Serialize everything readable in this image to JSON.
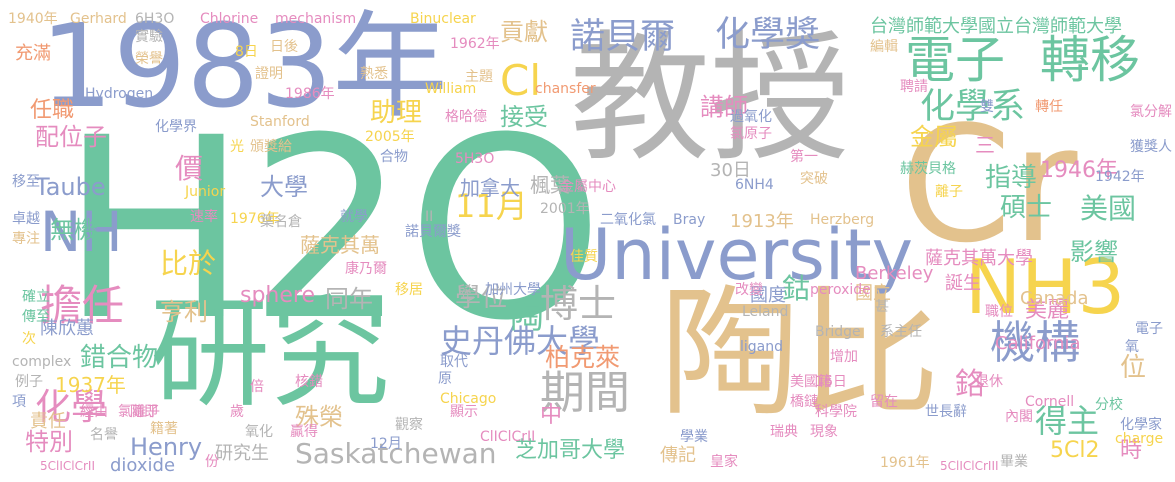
{
  "palette": {
    "green": "#6cc5a0",
    "blue": "#8b9ccc",
    "grey": "#b4b4b4",
    "tan": "#e3c28d",
    "yellow": "#f6d44e",
    "pink": "#e58cbf",
    "orange": "#f19a72",
    "lime": "#b3d35d"
  },
  "words": [
    {
      "text": "H2O",
      "color": "green"
    },
    {
      "text": "教授",
      "color": "grey"
    },
    {
      "text": "1983年",
      "color": "blue"
    },
    {
      "text": "研究",
      "color": "green"
    },
    {
      "text": "陶比",
      "color": "tan"
    },
    {
      "text": "Cr",
      "color": "tan"
    },
    {
      "text": "University",
      "color": "blue"
    },
    {
      "text": "NH3",
      "color": "yellow"
    },
    {
      "text": "電子",
      "color": "green"
    },
    {
      "text": "轉移",
      "color": "green"
    },
    {
      "text": "諾貝爾",
      "color": "blue"
    },
    {
      "text": "化學獎",
      "color": "blue"
    },
    {
      "text": "擔任",
      "color": "pink"
    },
    {
      "text": "機構",
      "color": "blue"
    },
    {
      "text": "期間",
      "color": "grey"
    },
    {
      "text": "Cl",
      "color": "yellow"
    },
    {
      "text": "化學系",
      "color": "green"
    },
    {
      "text": "NH",
      "color": "blue"
    },
    {
      "text": "史丹佛大學",
      "color": "blue"
    },
    {
      "text": "Saskatchewan",
      "color": "grey"
    },
    {
      "text": "博士",
      "color": "grey"
    },
    {
      "text": "1946年",
      "color": "pink"
    },
    {
      "text": "化學",
      "color": "pink"
    },
    {
      "text": "鉻",
      "color": "pink"
    },
    {
      "text": "錯合物",
      "color": "green"
    },
    {
      "text": "Taube",
      "color": "blue"
    },
    {
      "text": "無機",
      "color": "green"
    },
    {
      "text": "陶",
      "color": "green"
    },
    {
      "text": "大學",
      "color": "blue"
    },
    {
      "text": "11月",
      "color": "yellow"
    },
    {
      "text": "柏克萊",
      "color": "orange"
    },
    {
      "text": "指導",
      "color": "green"
    },
    {
      "text": "碩士",
      "color": "green"
    },
    {
      "text": "美國",
      "color": "green"
    },
    {
      "text": "得主",
      "color": "green"
    },
    {
      "text": "鈷",
      "color": "green"
    },
    {
      "text": "芝加哥大學",
      "color": "green"
    },
    {
      "text": "Henry",
      "color": "blue"
    },
    {
      "text": "特別",
      "color": "pink"
    },
    {
      "text": "5Cl2",
      "color": "yellow"
    },
    {
      "text": "時",
      "color": "pink"
    },
    {
      "text": "影響",
      "color": "green"
    },
    {
      "text": "sphere",
      "color": "pink"
    },
    {
      "text": "學位",
      "color": "grey"
    },
    {
      "text": "同年",
      "color": "grey"
    },
    {
      "text": "比於",
      "color": "yellow"
    },
    {
      "text": "亨利",
      "color": "tan"
    },
    {
      "text": "殊榮",
      "color": "tan"
    },
    {
      "text": "金屬",
      "color": "yellow"
    },
    {
      "text": "講師",
      "color": "pink"
    },
    {
      "text": "助理",
      "color": "yellow"
    },
    {
      "text": "接受",
      "color": "green"
    },
    {
      "text": "貢獻",
      "color": "tan"
    },
    {
      "text": "任職",
      "color": "orange"
    },
    {
      "text": "配位子",
      "color": "pink"
    },
    {
      "text": "價",
      "color": "pink"
    },
    {
      "text": "楓葉",
      "color": "grey"
    },
    {
      "text": "三",
      "color": "pink"
    },
    {
      "text": "美麗",
      "color": "pink"
    },
    {
      "text": "位",
      "color": "tan"
    },
    {
      "text": "1937年",
      "color": "yellow"
    },
    {
      "text": "中",
      "color": "pink"
    },
    {
      "text": "加拿大",
      "color": "blue"
    },
    {
      "text": "30日",
      "color": "grey"
    },
    {
      "text": "台灣師範大學國立台灣師範大學",
      "color": "green"
    },
    {
      "text": "陳欣蕙",
      "color": "blue"
    },
    {
      "text": "責任",
      "color": "tan"
    },
    {
      "text": "薩克其萬",
      "color": "tan"
    },
    {
      "text": "研究生",
      "color": "grey"
    },
    {
      "text": "dioxide",
      "color": "blue"
    },
    {
      "text": "傳記",
      "color": "tan"
    },
    {
      "text": "國度",
      "color": "blue"
    },
    {
      "text": "國立",
      "color": "tan"
    },
    {
      "text": "Canada",
      "color": "tan"
    },
    {
      "text": "誕生",
      "color": "pink"
    },
    {
      "text": "California",
      "color": "pink"
    },
    {
      "text": "薩克其萬大學",
      "color": "pink"
    },
    {
      "text": "1913年",
      "color": "tan"
    },
    {
      "text": "Berkeley",
      "color": "pink"
    },
    {
      "text": "充滿",
      "color": "orange"
    },
    {
      "text": "1940年",
      "color": "tan"
    },
    {
      "text": "Gerhard",
      "color": "tan"
    },
    {
      "text": "6H3O",
      "color": "grey"
    },
    {
      "text": "Chlorine",
      "color": "pink"
    },
    {
      "text": "mechanism",
      "color": "pink"
    },
    {
      "text": "Binuclear",
      "color": "yellow"
    },
    {
      "text": "Hydrogen",
      "color": "blue"
    },
    {
      "text": "1986年",
      "color": "pink"
    },
    {
      "text": "Stanford",
      "color": "tan"
    },
    {
      "text": "1962年",
      "color": "pink"
    },
    {
      "text": "William",
      "color": "yellow"
    },
    {
      "text": "chansfer",
      "color": "orange"
    },
    {
      "text": "格哈德",
      "color": "pink"
    },
    {
      "text": "主題",
      "color": "tan"
    },
    {
      "text": "熟悉",
      "color": "tan"
    },
    {
      "text": "實驗",
      "color": "grey"
    },
    {
      "text": "榮譽",
      "color": "tan"
    },
    {
      "text": "8日",
      "color": "yellow"
    },
    {
      "text": "日後",
      "color": "tan"
    },
    {
      "text": "證明",
      "color": "tan"
    },
    {
      "text": "化學界",
      "color": "blue"
    },
    {
      "text": "頒獎給",
      "color": "tan"
    },
    {
      "text": "2005年",
      "color": "yellow"
    },
    {
      "text": "合物",
      "color": "blue"
    },
    {
      "text": "光",
      "color": "yellow"
    },
    {
      "text": "5H3O",
      "color": "pink"
    },
    {
      "text": "6NH4",
      "color": "blue"
    },
    {
      "text": "金屬中心",
      "color": "pink"
    },
    {
      "text": "2001年",
      "color": "grey"
    },
    {
      "text": "Junior",
      "color": "yellow"
    },
    {
      "text": "1976年",
      "color": "yellow"
    },
    {
      "text": "速率",
      "color": "pink"
    },
    {
      "text": "葉名倉",
      "color": "grey"
    },
    {
      "text": "就學",
      "color": "blue"
    },
    {
      "text": "諾貝爾獎",
      "color": "blue"
    },
    {
      "text": "二氧化氯",
      "color": "blue"
    },
    {
      "text": "Bray",
      "color": "blue"
    },
    {
      "text": "Herzberg",
      "color": "tan"
    },
    {
      "text": "佳質",
      "color": "yellow"
    },
    {
      "text": "康乃爾",
      "color": "pink"
    },
    {
      "text": "移居",
      "color": "yellow"
    },
    {
      "text": "加州大學",
      "color": "blue"
    },
    {
      "text": "改變",
      "color": "pink"
    },
    {
      "text": "peroxide",
      "color": "pink"
    },
    {
      "text": "Leland",
      "color": "grey"
    },
    {
      "text": "Bridge",
      "color": "grey"
    },
    {
      "text": "系主任",
      "color": "grey"
    },
    {
      "text": "ligand",
      "color": "blue"
    },
    {
      "text": "取代",
      "color": "blue"
    },
    {
      "text": "原",
      "color": "blue"
    },
    {
      "text": "核錯",
      "color": "pink"
    },
    {
      "text": "Chicago",
      "color": "yellow"
    },
    {
      "text": "觀察",
      "color": "grey"
    },
    {
      "text": "顯示",
      "color": "pink"
    },
    {
      "text": "ClIClCrII",
      "color": "pink"
    },
    {
      "text": "12月",
      "color": "blue"
    },
    {
      "text": "贏得",
      "color": "pink"
    },
    {
      "text": "學業",
      "color": "blue"
    },
    {
      "text": "皇家",
      "color": "pink"
    },
    {
      "text": "1961年",
      "color": "tan"
    },
    {
      "text": "5ClIClCrII",
      "color": "pink"
    },
    {
      "text": "5ClIClCrIII",
      "color": "pink"
    },
    {
      "text": "氯離子",
      "color": "pink"
    },
    {
      "text": "籍著",
      "color": "tan"
    },
    {
      "text": "名譽",
      "color": "grey"
    },
    {
      "text": "經由",
      "color": "pink"
    },
    {
      "text": "隨即",
      "color": "pink"
    },
    {
      "text": "例子",
      "color": "grey"
    },
    {
      "text": "項",
      "color": "blue"
    },
    {
      "text": "complex",
      "color": "grey"
    },
    {
      "text": "確立",
      "color": "green"
    },
    {
      "text": "傳至",
      "color": "green"
    },
    {
      "text": "次",
      "color": "yellow"
    },
    {
      "text": "移至",
      "color": "blue"
    },
    {
      "text": "卓越",
      "color": "blue"
    },
    {
      "text": "專注",
      "color": "tan"
    },
    {
      "text": "美國籍",
      "color": "pink"
    },
    {
      "text": "16日",
      "color": "pink"
    },
    {
      "text": "橋鏈",
      "color": "pink"
    },
    {
      "text": "科學院",
      "color": "pink"
    },
    {
      "text": "瑞典",
      "color": "pink"
    },
    {
      "text": "現象",
      "color": "pink"
    },
    {
      "text": "留在",
      "color": "pink"
    },
    {
      "text": "世長辭",
      "color": "blue"
    },
    {
      "text": "退休",
      "color": "pink"
    },
    {
      "text": "Cornell",
      "color": "pink"
    },
    {
      "text": "分校",
      "color": "green"
    },
    {
      "text": "化學家",
      "color": "blue"
    },
    {
      "text": "charge",
      "color": "yellow"
    },
    {
      "text": "畢業",
      "color": "grey"
    },
    {
      "text": "內閣",
      "color": "pink"
    },
    {
      "text": "過氧化",
      "color": "blue"
    },
    {
      "text": "氯原子",
      "color": "pink"
    },
    {
      "text": "第一",
      "color": "pink"
    },
    {
      "text": "突破",
      "color": "tan"
    },
    {
      "text": "赫茨貝格",
      "color": "green"
    },
    {
      "text": "離子",
      "color": "yellow"
    },
    {
      "text": "1942年",
      "color": "blue"
    },
    {
      "text": "編輯",
      "color": "tan"
    },
    {
      "text": "聘請",
      "color": "pink"
    },
    {
      "text": "轉任",
      "color": "orange"
    },
    {
      "text": "雙",
      "color": "blue"
    },
    {
      "text": "氯分解",
      "color": "pink"
    },
    {
      "text": "獲獎人",
      "color": "blue"
    },
    {
      "text": "甚",
      "color": "grey"
    },
    {
      "text": "職位",
      "color": "pink"
    },
    {
      "text": "增加",
      "color": "pink"
    },
    {
      "text": "電子",
      "color": "blue"
    },
    {
      "text": "氧",
      "color": "blue"
    },
    {
      "text": "倍",
      "color": "pink"
    },
    {
      "text": "歲",
      "color": "pink"
    },
    {
      "text": "份",
      "color": "pink"
    },
    {
      "text": "氧化",
      "color": "grey"
    },
    {
      "text": "年",
      "color": "grey"
    },
    {
      "text": "II",
      "color": "grey"
    }
  ]
}
